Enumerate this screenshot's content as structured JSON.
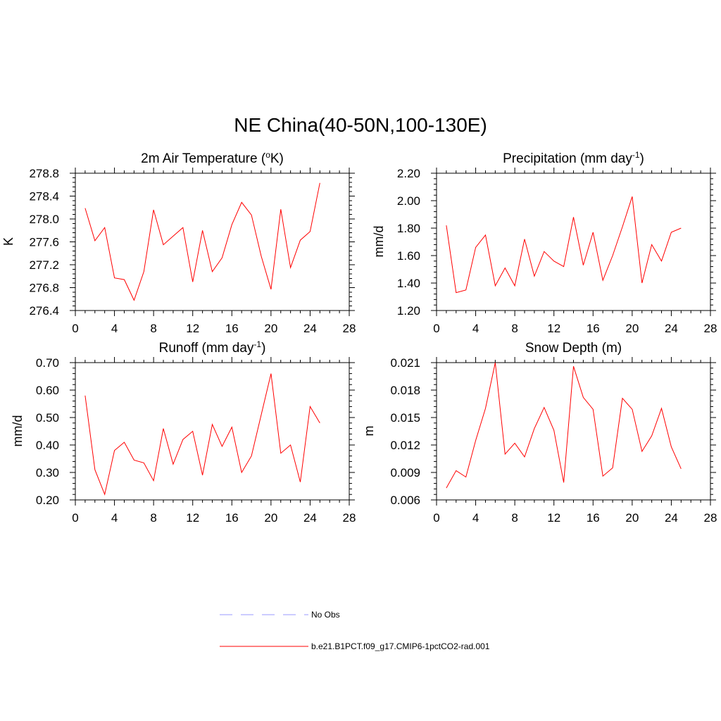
{
  "main_title": "NE China(40-50N,100-130E)",
  "chart_data": [
    {
      "type": "line",
      "title": "2m Air Temperature (",
      "title_sup": "o",
      "title_after": "K)",
      "ylabel": "K",
      "x": [
        1,
        2,
        3,
        4,
        5,
        6,
        7,
        8,
        9,
        10,
        11,
        12,
        13,
        14,
        15,
        16,
        17,
        18,
        19,
        20,
        21,
        22,
        23,
        24,
        25
      ],
      "xlim": [
        0,
        28
      ],
      "xticks": [
        "0",
        "4",
        "8",
        "12",
        "16",
        "20",
        "24",
        "28"
      ],
      "ylim": [
        276.4,
        278.8
      ],
      "yticks": [
        "276.4",
        "276.8",
        "277.2",
        "277.6",
        "278.0",
        "278.4",
        "278.8"
      ],
      "series": [
        {
          "values": [
            278.19,
            277.62,
            277.85,
            276.97,
            276.94,
            276.58,
            277.08,
            278.16,
            277.55,
            277.7,
            277.85,
            276.9,
            277.8,
            277.08,
            277.32,
            277.9,
            278.29,
            278.07,
            277.35,
            276.77,
            278.17,
            277.15,
            277.63,
            277.78,
            278.63
          ]
        }
      ]
    },
    {
      "type": "line",
      "title": "Precipitation (mm day",
      "title_sup": "-1",
      "title_after": ")",
      "ylabel": "mm/d",
      "x": [
        1,
        2,
        3,
        4,
        5,
        6,
        7,
        8,
        9,
        10,
        11,
        12,
        13,
        14,
        15,
        16,
        17,
        18,
        19,
        20,
        21,
        22,
        23,
        24,
        25
      ],
      "xlim": [
        0,
        28
      ],
      "xticks": [
        "0",
        "4",
        "8",
        "12",
        "16",
        "20",
        "24",
        "28"
      ],
      "ylim": [
        1.2,
        2.2
      ],
      "yticks": [
        "1.20",
        "1.40",
        "1.60",
        "1.80",
        "2.00",
        "2.20"
      ],
      "series": [
        {
          "values": [
            1.82,
            1.33,
            1.35,
            1.66,
            1.75,
            1.38,
            1.51,
            1.38,
            1.72,
            1.45,
            1.63,
            1.56,
            1.52,
            1.88,
            1.53,
            1.77,
            1.42,
            1.6,
            1.81,
            2.03,
            1.4,
            1.68,
            1.56,
            1.77,
            1.8
          ]
        }
      ]
    },
    {
      "type": "line",
      "title": "Runoff (mm day",
      "title_sup": "-1",
      "title_after": ")",
      "ylabel": "mm/d",
      "x": [
        1,
        2,
        3,
        4,
        5,
        6,
        7,
        8,
        9,
        10,
        11,
        12,
        13,
        14,
        15,
        16,
        17,
        18,
        19,
        20,
        21,
        22,
        23,
        24,
        25
      ],
      "xlim": [
        0,
        28
      ],
      "xticks": [
        "0",
        "4",
        "8",
        "12",
        "16",
        "20",
        "24",
        "28"
      ],
      "ylim": [
        0.2,
        0.7
      ],
      "yticks": [
        "0.20",
        "0.30",
        "0.40",
        "0.50",
        "0.60",
        "0.70"
      ],
      "series": [
        {
          "values": [
            0.58,
            0.31,
            0.22,
            0.38,
            0.41,
            0.345,
            0.335,
            0.27,
            0.46,
            0.33,
            0.42,
            0.45,
            0.29,
            0.475,
            0.395,
            0.465,
            0.3,
            0.36,
            0.51,
            0.66,
            0.37,
            0.4,
            0.265,
            0.54,
            0.48
          ]
        }
      ]
    },
    {
      "type": "line",
      "title": "Snow Depth (m)",
      "title_sup": "",
      "title_after": "",
      "ylabel": "m",
      "x": [
        1,
        2,
        3,
        4,
        5,
        6,
        7,
        8,
        9,
        10,
        11,
        12,
        13,
        14,
        15,
        16,
        17,
        18,
        19,
        20,
        21,
        22,
        23,
        24,
        25
      ],
      "xlim": [
        0,
        28
      ],
      "xticks": [
        "0",
        "4",
        "8",
        "12",
        "16",
        "20",
        "24",
        "28"
      ],
      "ylim": [
        0.006,
        0.021
      ],
      "yticks": [
        "0.006",
        "0.009",
        "0.012",
        "0.015",
        "0.018",
        "0.021"
      ],
      "series": [
        {
          "values": [
            0.0073,
            0.0092,
            0.0085,
            0.0125,
            0.016,
            0.021,
            0.011,
            0.0122,
            0.0107,
            0.0138,
            0.0161,
            0.0136,
            0.0079,
            0.0206,
            0.0172,
            0.0159,
            0.0086,
            0.0095,
            0.0171,
            0.0159,
            0.0113,
            0.013,
            0.016,
            0.0118,
            0.0094
          ]
        }
      ]
    }
  ],
  "legend": [
    {
      "label": "No Obs",
      "color": "#9999ff",
      "dash": "dashed"
    },
    {
      "label": "b.e21.B1PCT.f09_g17.CMIP6-1pctCO2-rad.001",
      "color": "#ff0000",
      "dash": "solid"
    }
  ],
  "line_color": "#ff0000"
}
